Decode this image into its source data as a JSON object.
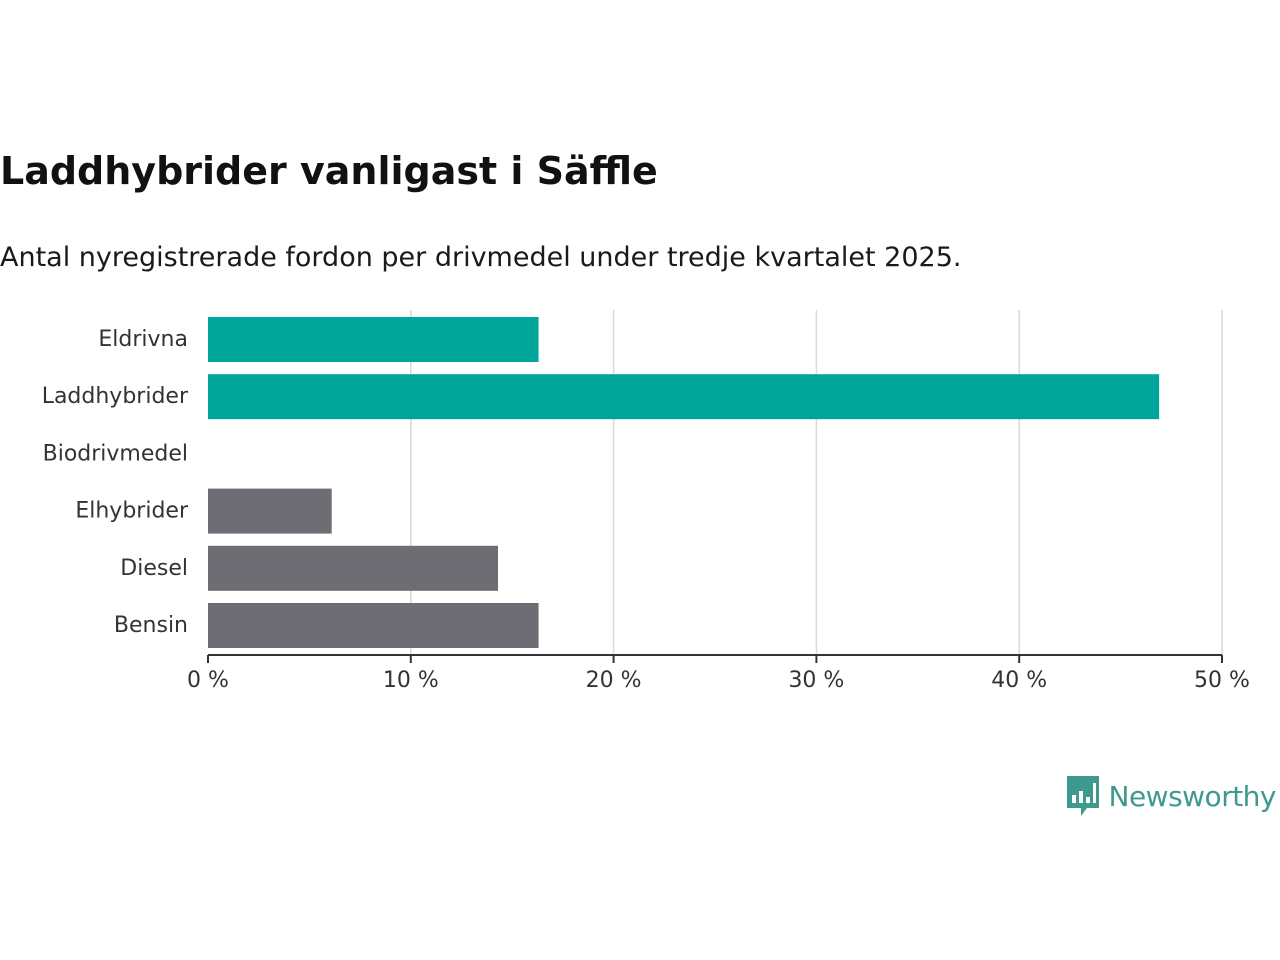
{
  "title": "Laddhybrider vanligast i Säffle",
  "subtitle": "Antal nyregistrerade fordon per drivmedel under tredje kvartalet 2025.",
  "brand": {
    "name": "Newsworthy",
    "logo_icon": "bar-chart-speech-bubble-icon",
    "color": "#3e9a8f"
  },
  "colors": {
    "highlight": "#00a59a",
    "default": "#6e6d73",
    "grid": "#d9d9d9",
    "axis": "#333333"
  },
  "chart_data": {
    "type": "bar",
    "orientation": "horizontal",
    "title": "Laddhybrider vanligast i Säffle",
    "subtitle": "Antal nyregistrerade fordon per drivmedel under tredje kvartalet 2025.",
    "categories": [
      "Eldrivna",
      "Laddhybrider",
      "Biodrivmedel",
      "Elhybrider",
      "Diesel",
      "Bensin"
    ],
    "values": [
      16.3,
      46.9,
      0,
      6.1,
      14.3,
      16.3
    ],
    "highlighted": [
      true,
      true,
      false,
      false,
      false,
      false
    ],
    "unit": "%",
    "xlim": [
      0,
      50
    ],
    "xticks": [
      0,
      10,
      20,
      30,
      40,
      50
    ],
    "xtick_labels": [
      "0 %",
      "10 %",
      "20 %",
      "30 %",
      "40 %",
      "50 %"
    ],
    "xlabel": "",
    "ylabel": "",
    "grid": true
  }
}
